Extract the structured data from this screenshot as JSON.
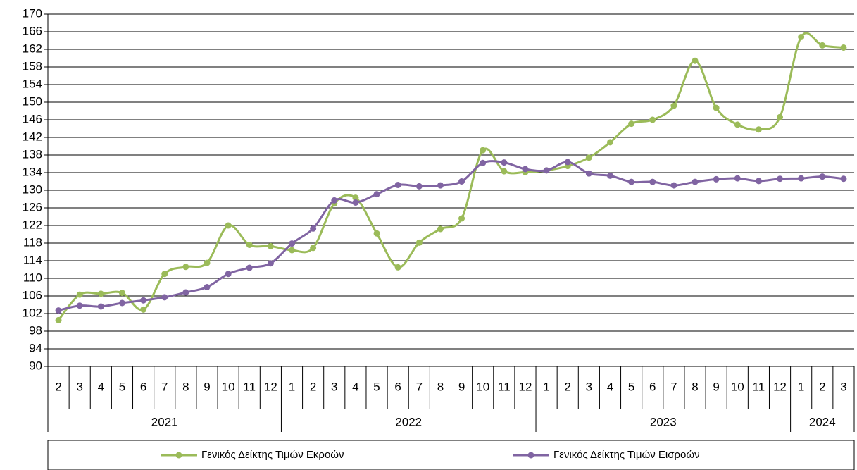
{
  "chart_data": {
    "type": "line",
    "category_groups": [
      {
        "label": "2021",
        "categories": [
          "2",
          "3",
          "4",
          "5",
          "6",
          "7",
          "8",
          "9",
          "10",
          "11",
          "12"
        ]
      },
      {
        "label": "2022",
        "categories": [
          "1",
          "2",
          "3",
          "4",
          "5",
          "6",
          "7",
          "8",
          "9",
          "10",
          "11",
          "12"
        ]
      },
      {
        "label": "2023",
        "categories": [
          "1",
          "2",
          "3",
          "4",
          "5",
          "6",
          "7",
          "8",
          "9",
          "10",
          "11",
          "12"
        ]
      },
      {
        "label": "2024",
        "categories": [
          "1",
          "2",
          "3"
        ]
      }
    ],
    "series": [
      {
        "name": "Γενικός Δείκτης Τιμών Εκροών",
        "color": "#9bbb59",
        "values": [
          100.5,
          106.3,
          106.5,
          106.7,
          102.9,
          111.0,
          112.6,
          113.5,
          122.0,
          117.6,
          117.3,
          116.4,
          116.9,
          127.0,
          128.3,
          120.2,
          112.5,
          118.1,
          121.2,
          123.6,
          139.1,
          134.3,
          134.1,
          134.5,
          135.5,
          137.4,
          140.9,
          145.1,
          146.0,
          149.2,
          159.4,
          148.7,
          144.9,
          143.8,
          146.6,
          164.8,
          162.9,
          162.4
        ]
      },
      {
        "name": "Γενικός Δείκτης Τιμών Εισροών",
        "color": "#8064a2",
        "values": [
          102.7,
          103.8,
          103.6,
          104.4,
          105.0,
          105.7,
          106.8,
          108.0,
          111.0,
          112.4,
          113.4,
          117.9,
          121.3,
          127.7,
          127.2,
          129.1,
          131.2,
          130.9,
          131.1,
          132.0,
          136.2,
          136.3,
          134.8,
          134.5,
          136.4,
          133.8,
          133.3,
          131.9,
          131.9,
          131.1,
          131.9,
          132.5,
          132.7,
          132.1,
          132.6,
          132.7,
          133.1,
          132.6
        ]
      }
    ],
    "ylim": [
      90,
      170
    ],
    "yticks": [
      90,
      94,
      98,
      102,
      106,
      110,
      114,
      118,
      122,
      126,
      130,
      134,
      138,
      142,
      146,
      150,
      154,
      158,
      162,
      166,
      170
    ],
    "grid": true,
    "smooth": true,
    "legend": "bottom"
  }
}
